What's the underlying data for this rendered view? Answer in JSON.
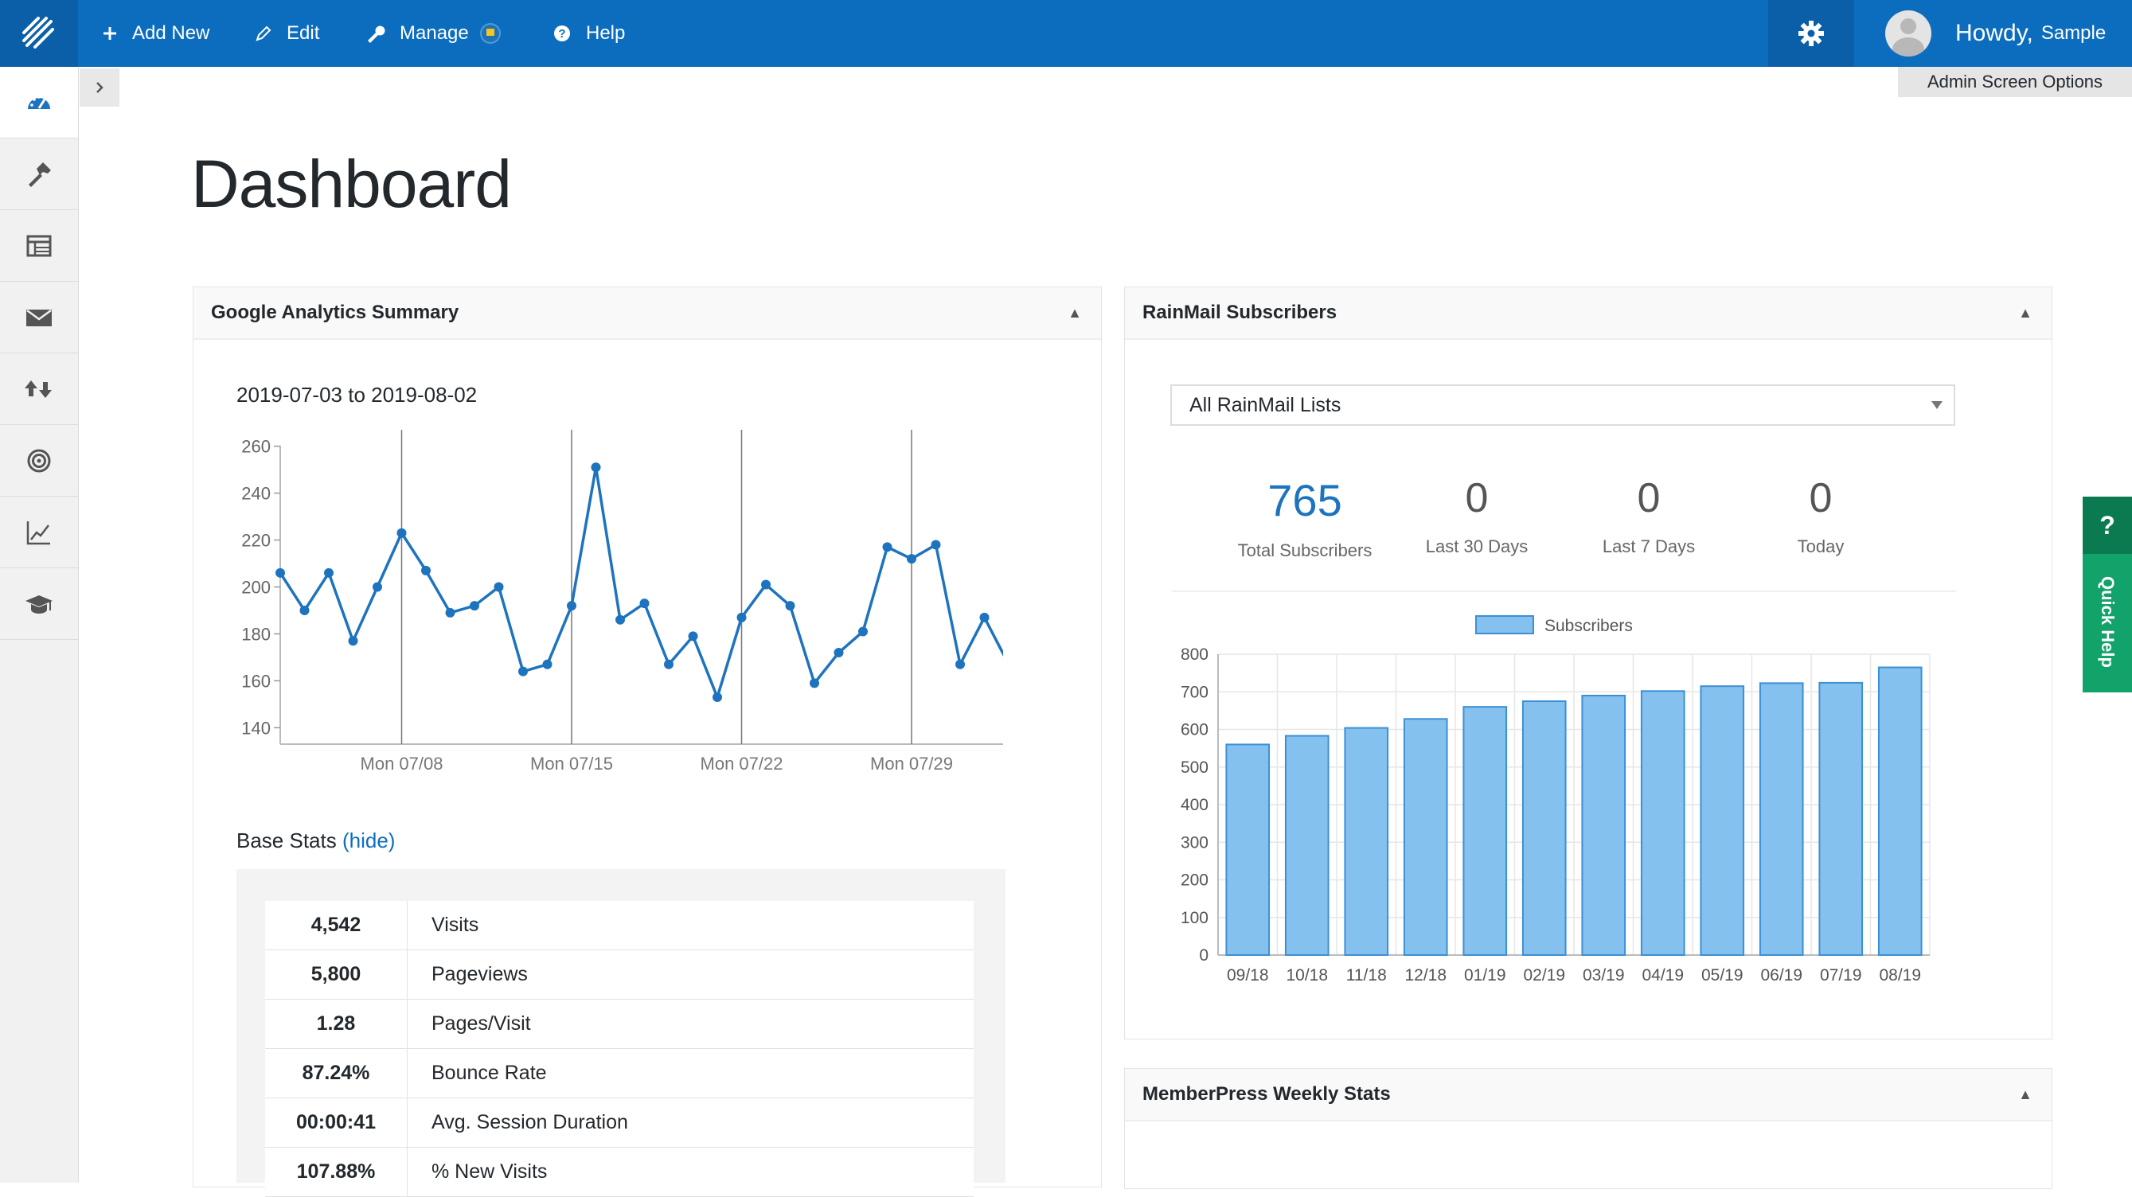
{
  "topbar": {
    "add_new": "Add New",
    "edit": "Edit",
    "manage": "Manage",
    "help": "Help",
    "howdy": "Howdy,",
    "username": "Sample",
    "screen_options": "Admin Screen Options"
  },
  "sidebar": {
    "items": [
      {
        "icon": "dashboard-gauge-icon",
        "active": true
      },
      {
        "icon": "hammer-icon"
      },
      {
        "icon": "table-layout-icon"
      },
      {
        "icon": "mail-envelope-icon"
      },
      {
        "icon": "up-down-arrows-icon"
      },
      {
        "icon": "target-icon"
      },
      {
        "icon": "line-chart-icon"
      },
      {
        "icon": "graduation-cap-icon"
      }
    ]
  },
  "page": {
    "title": "Dashboard"
  },
  "analytics": {
    "title": "Google Analytics Summary",
    "date_range": "2019-07-03 to 2019-08-02",
    "base_stats_label": "Base Stats",
    "hide_link": "(hide)",
    "stats": [
      {
        "value": "4,542",
        "label": "Visits"
      },
      {
        "value": "5,800",
        "label": "Pageviews"
      },
      {
        "value": "1.28",
        "label": "Pages/Visit"
      },
      {
        "value": "87.24%",
        "label": "Bounce Rate"
      },
      {
        "value": "00:00:41",
        "label": "Avg. Session Duration"
      },
      {
        "value": "107.88%",
        "label": "% New Visits"
      }
    ]
  },
  "rainmail": {
    "title": "RainMail Subscribers",
    "list_select": "All RainMail Lists",
    "kpis": [
      {
        "value": "765",
        "label": "Total Subscribers"
      },
      {
        "value": "0",
        "label": "Last 30 Days"
      },
      {
        "value": "0",
        "label": "Last 7 Days"
      },
      {
        "value": "0",
        "label": "Today"
      }
    ]
  },
  "memberpress": {
    "title": "MemberPress Weekly Stats"
  },
  "quick_help": {
    "q": "?",
    "label": "Quick Help"
  },
  "colors": {
    "accent": "#0c6dbf",
    "line": "#1e73be",
    "bar_fill": "#85c1ef",
    "bar_stroke": "#3d8fd4",
    "quick_help": "#12a36b"
  },
  "chart_data": [
    {
      "type": "line",
      "x": [
        "07/03",
        "07/04",
        "07/05",
        "07/06",
        "07/07",
        "07/08",
        "07/09",
        "07/10",
        "07/11",
        "07/12",
        "07/13",
        "07/14",
        "07/15",
        "07/16",
        "07/17",
        "07/18",
        "07/19",
        "07/20",
        "07/21",
        "07/22",
        "07/23",
        "07/24",
        "07/25",
        "07/26",
        "07/27",
        "07/28",
        "07/29",
        "07/30",
        "07/31",
        "08/01",
        "08/02"
      ],
      "series": [
        {
          "values": [
            206,
            190,
            206,
            177,
            200,
            223,
            207,
            189,
            192,
            200,
            164,
            167,
            192,
            251,
            186,
            193,
            167,
            179,
            153,
            187,
            201,
            192,
            159,
            172,
            181,
            217,
            212,
            218,
            167,
            187,
            167
          ]
        }
      ],
      "x_ticks": [
        {
          "index": 5,
          "label": "Mon 07/08"
        },
        {
          "index": 12,
          "label": "Mon 07/15"
        },
        {
          "index": 19,
          "label": "Mon 07/22"
        },
        {
          "index": 26,
          "label": "Mon 07/29"
        }
      ],
      "ylim": [
        133,
        267
      ],
      "y_ticks": [
        140,
        160,
        180,
        200,
        220,
        240,
        260
      ],
      "grid": "vertical at Mondays"
    },
    {
      "type": "bar",
      "categories": [
        "09/18",
        "10/18",
        "11/18",
        "12/18",
        "01/19",
        "02/19",
        "03/19",
        "04/19",
        "05/19",
        "06/19",
        "07/19",
        "08/19"
      ],
      "series": [
        {
          "name": "Subscribers",
          "values": [
            560,
            583,
            604,
            628,
            660,
            675,
            690,
            702,
            715,
            723,
            724,
            765
          ]
        }
      ],
      "ylim": [
        0,
        800
      ],
      "y_ticks": [
        0,
        100,
        200,
        300,
        400,
        500,
        600,
        700,
        800
      ],
      "legend": "top-center",
      "grid": true
    }
  ]
}
